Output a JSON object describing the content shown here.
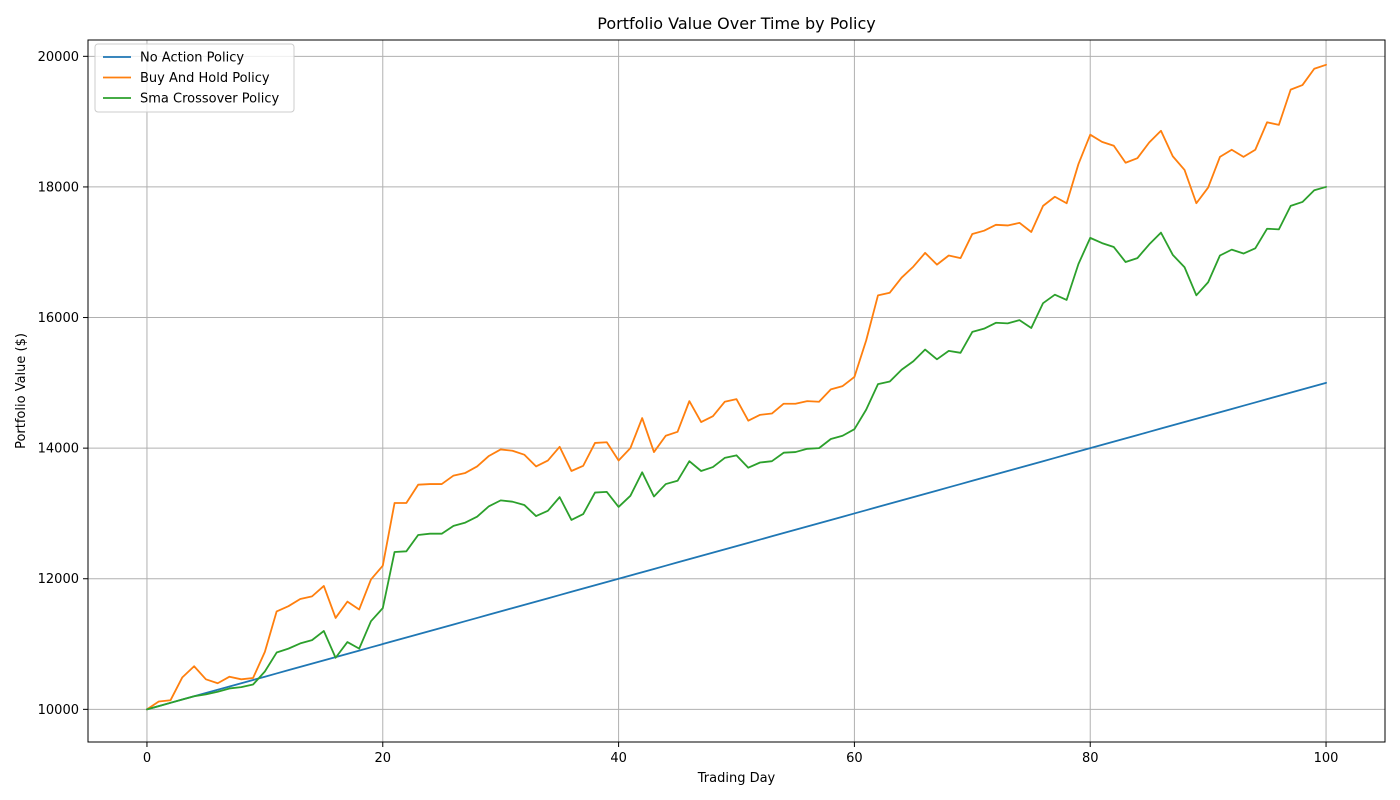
{
  "chart_data": {
    "type": "line",
    "title": "Portfolio Value Over Time by Policy",
    "xlabel": "Trading Day",
    "ylabel": "Portfolio Value ($)",
    "xlim": [
      -5,
      105
    ],
    "ylim": [
      9500,
      20250
    ],
    "xticks": [
      0,
      20,
      40,
      60,
      80,
      100
    ],
    "yticks": [
      10000,
      12000,
      14000,
      16000,
      18000,
      20000
    ],
    "grid": true,
    "legend_position": "top-left",
    "series": [
      {
        "name": "No Action Policy",
        "color": "#1f77b4",
        "values": [
          10000,
          10050,
          10100,
          10150,
          10200,
          10250,
          10300,
          10350,
          10400,
          10450,
          10500,
          10550,
          10600,
          10650,
          10700,
          10750,
          10800,
          10850,
          10900,
          10950,
          11000,
          11050,
          11100,
          11150,
          11200,
          11250,
          11300,
          11350,
          11400,
          11450,
          11500,
          11550,
          11600,
          11650,
          11700,
          11750,
          11800,
          11850,
          11900,
          11950,
          12000,
          12050,
          12100,
          12150,
          12200,
          12250,
          12300,
          12350,
          12400,
          12450,
          12500,
          12550,
          12600,
          12650,
          12700,
          12750,
          12800,
          12850,
          12900,
          12950,
          13000,
          13050,
          13100,
          13150,
          13200,
          13250,
          13300,
          13350,
          13400,
          13450,
          13500,
          13550,
          13600,
          13650,
          13700,
          13750,
          13800,
          13850,
          13900,
          13950,
          14000,
          14050,
          14100,
          14150,
          14200,
          14250,
          14300,
          14350,
          14400,
          14450,
          14500,
          14550,
          14600,
          14650,
          14700,
          14750,
          14800,
          14850,
          14900,
          14950,
          15000
        ]
      },
      {
        "name": "Buy And Hold Policy",
        "color": "#ff7f0e",
        "values": [
          10000,
          10120,
          10140,
          10490,
          10660,
          10460,
          10400,
          10500,
          10460,
          10480,
          10880,
          11500,
          11580,
          11690,
          11730,
          11890,
          11400,
          11650,
          11530,
          11990,
          12200,
          13160,
          13160,
          13440,
          13450,
          13450,
          13580,
          13620,
          13720,
          13880,
          13980,
          13960,
          13900,
          13720,
          13810,
          14020,
          13650,
          13730,
          14080,
          14090,
          13810,
          14000,
          14460,
          13940,
          14190,
          14250,
          14720,
          14400,
          14490,
          14710,
          14750,
          14420,
          14510,
          14530,
          14680,
          14680,
          14720,
          14710,
          14900,
          14950,
          15090,
          15650,
          16340,
          16380,
          16610,
          16780,
          16990,
          16810,
          16950,
          16910,
          17280,
          17330,
          17420,
          17410,
          17450,
          17310,
          17710,
          17850,
          17750,
          18350,
          18800,
          18690,
          18630,
          18370,
          18440,
          18680,
          18860,
          18470,
          18260,
          17750,
          17990,
          18460,
          18570,
          18460,
          18570,
          18990,
          18950,
          19490,
          19560,
          19810,
          19870
        ]
      },
      {
        "name": "Sma Crossover Policy",
        "color": "#2ca02c",
        "values": [
          10000,
          10050,
          10100,
          10150,
          10200,
          10230,
          10270,
          10320,
          10340,
          10380,
          10580,
          10870,
          10930,
          11010,
          11060,
          11200,
          10790,
          11030,
          10930,
          11350,
          11550,
          12410,
          12420,
          12670,
          12690,
          12690,
          12810,
          12860,
          12950,
          13110,
          13200,
          13180,
          13130,
          12960,
          13040,
          13250,
          12900,
          12990,
          13320,
          13330,
          13100,
          13270,
          13630,
          13260,
          13450,
          13500,
          13800,
          13650,
          13710,
          13850,
          13890,
          13700,
          13780,
          13800,
          13930,
          13940,
          13990,
          14000,
          14140,
          14190,
          14290,
          14590,
          14980,
          15020,
          15200,
          15330,
          15510,
          15360,
          15490,
          15460,
          15780,
          15830,
          15920,
          15910,
          15960,
          15840,
          16220,
          16350,
          16270,
          16820,
          17220,
          17140,
          17080,
          16850,
          16910,
          17120,
          17300,
          16960,
          16770,
          16340,
          16540,
          16950,
          17040,
          16980,
          17060,
          17360,
          17350,
          17710,
          17770,
          17950,
          18000
        ]
      }
    ]
  }
}
